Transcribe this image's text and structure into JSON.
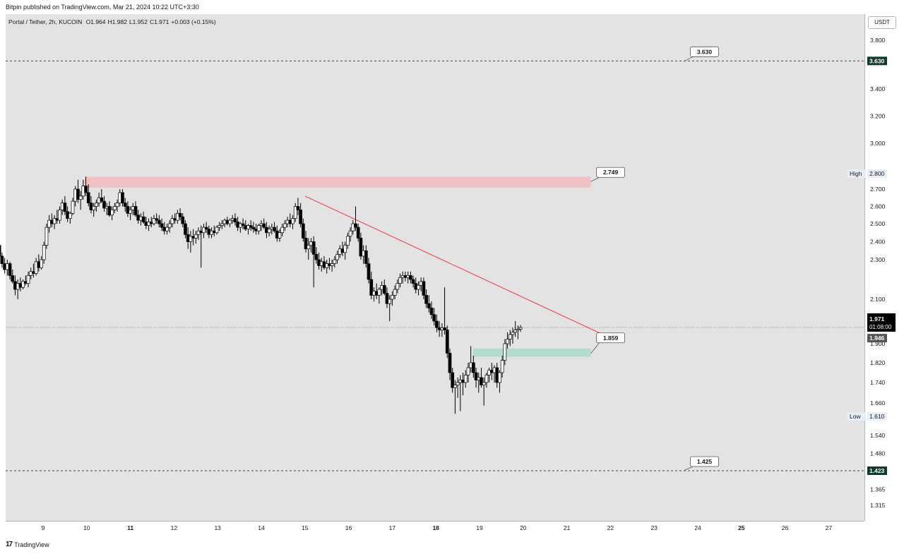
{
  "header": {
    "text": "Bitpin published on TradingView.com, Mar 21, 2024 10:22 UTC+3:30"
  },
  "legend": {
    "pair": "Portal / Tether, 2h, KUCOIN",
    "open": "O1.964",
    "high": "H1.982",
    "low": "L1.952",
    "close": "C1.971",
    "change": "+0.003 (+0.15%)"
  },
  "footer": {
    "brand": "TradingView",
    "logo": "17"
  },
  "currency": "USDT",
  "colors": {
    "up": "#ffffff",
    "down": "#000000",
    "trendline": "#f23645",
    "resistance_zone": "#f4b6b6",
    "support_zone": "#a6d8cb",
    "pane_bg": "#e3e3e3"
  },
  "chart_data": {
    "type": "candlestick",
    "y_ticks": [
      "3.800",
      "3.630",
      "3.400",
      "3.200",
      "3.000",
      "2.800",
      "2.700",
      "2.600",
      "2.500",
      "2.400",
      "2.300",
      "2.100",
      "1.971",
      "1.946",
      "1.900",
      "1.820",
      "1.740",
      "1.660",
      "1.610",
      "1.540",
      "1.480",
      "1.423",
      "1.365",
      "1.315"
    ],
    "x_ticks": [
      "9",
      "10",
      "11",
      "12",
      "13",
      "14",
      "15",
      "16",
      "17",
      "18",
      "19",
      "20",
      "21",
      "22",
      "23",
      "24",
      "25",
      "26",
      "27"
    ],
    "x_ticks_bold": [
      "11",
      "18",
      "25"
    ],
    "price_labels": [
      {
        "label": "",
        "value": "3.630",
        "kind": "hline"
      },
      {
        "label": "High",
        "value": "2.800",
        "kind": "marker"
      },
      {
        "label": "",
        "value": "1.971",
        "sub": "01:08:00",
        "kind": "last"
      },
      {
        "label": "",
        "value": "1.946",
        "kind": "prev"
      },
      {
        "label": "Low",
        "value": "1.610",
        "kind": "marker"
      },
      {
        "label": "",
        "value": "1.423",
        "kind": "hline"
      }
    ],
    "callouts": [
      "3.630",
      "2.749",
      "1.859",
      "1.425"
    ],
    "zones": [
      {
        "name": "resistance",
        "from": 2.71,
        "to": 2.78
      },
      {
        "name": "support",
        "from": 1.845,
        "to": 1.88
      }
    ],
    "horizontal_lines": [
      3.63,
      1.423,
      1.971
    ],
    "trendline": {
      "from": {
        "day": 15.0,
        "price": 2.66
      },
      "to": {
        "day": 22.0,
        "price": 1.925
      }
    },
    "last_price": 1.971,
    "candles": [
      [
        8.0,
        2.38,
        2.42,
        2.3,
        2.32
      ],
      [
        8.06,
        2.32,
        2.34,
        2.26,
        2.28
      ],
      [
        8.12,
        2.28,
        2.31,
        2.23,
        2.25
      ],
      [
        8.18,
        2.25,
        2.3,
        2.22,
        2.28
      ],
      [
        8.24,
        2.28,
        2.29,
        2.2,
        2.22
      ],
      [
        8.3,
        2.22,
        2.25,
        2.18,
        2.19
      ],
      [
        8.36,
        2.19,
        2.22,
        2.12,
        2.15
      ],
      [
        8.42,
        2.15,
        2.2,
        2.1,
        2.18
      ],
      [
        8.48,
        2.18,
        2.21,
        2.14,
        2.16
      ],
      [
        8.54,
        2.16,
        2.2,
        2.15,
        2.19
      ],
      [
        8.6,
        2.19,
        2.22,
        2.17,
        2.18
      ],
      [
        8.66,
        2.18,
        2.24,
        2.16,
        2.22
      ],
      [
        8.72,
        2.22,
        2.26,
        2.2,
        2.24
      ],
      [
        8.78,
        2.24,
        2.28,
        2.21,
        2.23
      ],
      [
        8.84,
        2.23,
        2.31,
        2.22,
        2.29
      ],
      [
        8.9,
        2.29,
        2.33,
        2.24,
        2.26
      ],
      [
        8.96,
        2.26,
        2.32,
        2.25,
        2.3
      ],
      [
        9.02,
        2.3,
        2.4,
        2.28,
        2.38
      ],
      [
        9.08,
        2.38,
        2.5,
        2.36,
        2.48
      ],
      [
        9.14,
        2.48,
        2.55,
        2.45,
        2.52
      ],
      [
        9.2,
        2.52,
        2.56,
        2.48,
        2.5
      ],
      [
        9.26,
        2.5,
        2.55,
        2.47,
        2.53
      ],
      [
        9.32,
        2.53,
        2.58,
        2.5,
        2.52
      ],
      [
        9.38,
        2.52,
        2.6,
        2.5,
        2.58
      ],
      [
        9.44,
        2.58,
        2.64,
        2.55,
        2.62
      ],
      [
        9.5,
        2.62,
        2.66,
        2.55,
        2.57
      ],
      [
        9.56,
        2.57,
        2.6,
        2.51,
        2.53
      ],
      [
        9.62,
        2.53,
        2.57,
        2.5,
        2.56
      ],
      [
        9.68,
        2.56,
        2.65,
        2.55,
        2.63
      ],
      [
        9.74,
        2.63,
        2.72,
        2.6,
        2.7
      ],
      [
        9.8,
        2.7,
        2.76,
        2.62,
        2.64
      ],
      [
        9.86,
        2.64,
        2.69,
        2.58,
        2.66
      ],
      [
        9.92,
        2.66,
        2.76,
        2.64,
        2.72
      ],
      [
        9.98,
        2.72,
        2.78,
        2.66,
        2.68
      ],
      [
        10.04,
        2.68,
        2.73,
        2.6,
        2.62
      ],
      [
        10.1,
        2.62,
        2.66,
        2.56,
        2.58
      ],
      [
        10.16,
        2.58,
        2.62,
        2.54,
        2.6
      ],
      [
        10.22,
        2.6,
        2.64,
        2.57,
        2.62
      ],
      [
        10.28,
        2.62,
        2.68,
        2.6,
        2.65
      ],
      [
        10.34,
        2.65,
        2.7,
        2.62,
        2.63
      ],
      [
        10.4,
        2.63,
        2.66,
        2.57,
        2.59
      ],
      [
        10.46,
        2.59,
        2.62,
        2.55,
        2.6
      ],
      [
        10.52,
        2.6,
        2.63,
        2.54,
        2.55
      ],
      [
        10.58,
        2.55,
        2.6,
        2.52,
        2.58
      ],
      [
        10.64,
        2.58,
        2.62,
        2.56,
        2.6
      ],
      [
        10.7,
        2.6,
        2.64,
        2.57,
        2.62
      ],
      [
        10.76,
        2.62,
        2.7,
        2.6,
        2.68
      ],
      [
        10.82,
        2.68,
        2.7,
        2.6,
        2.62
      ],
      [
        10.88,
        2.62,
        2.65,
        2.57,
        2.6
      ],
      [
        10.94,
        2.6,
        2.63,
        2.54,
        2.56
      ],
      [
        11.0,
        2.56,
        2.6,
        2.52,
        2.58
      ],
      [
        11.06,
        2.58,
        2.62,
        2.55,
        2.6
      ],
      [
        11.12,
        2.6,
        2.63,
        2.54,
        2.55
      ],
      [
        11.18,
        2.55,
        2.58,
        2.5,
        2.52
      ],
      [
        11.24,
        2.52,
        2.56,
        2.49,
        2.54
      ],
      [
        11.3,
        2.54,
        2.57,
        2.5,
        2.51
      ],
      [
        11.36,
        2.51,
        2.54,
        2.47,
        2.49
      ],
      [
        11.42,
        2.49,
        2.53,
        2.46,
        2.51
      ],
      [
        11.48,
        2.51,
        2.54,
        2.48,
        2.5
      ],
      [
        11.54,
        2.5,
        2.55,
        2.49,
        2.53
      ],
      [
        11.6,
        2.53,
        2.56,
        2.5,
        2.52
      ],
      [
        11.66,
        2.52,
        2.55,
        2.48,
        2.5
      ],
      [
        11.72,
        2.5,
        2.53,
        2.46,
        2.48
      ],
      [
        11.78,
        2.48,
        2.51,
        2.44,
        2.46
      ],
      [
        11.84,
        2.46,
        2.5,
        2.44,
        2.48
      ],
      [
        11.9,
        2.48,
        2.52,
        2.45,
        2.5
      ],
      [
        11.96,
        2.5,
        2.55,
        2.48,
        2.53
      ],
      [
        12.02,
        2.53,
        2.56,
        2.5,
        2.52
      ],
      [
        12.08,
        2.52,
        2.58,
        2.5,
        2.56
      ],
      [
        12.14,
        2.56,
        2.59,
        2.52,
        2.54
      ],
      [
        12.2,
        2.54,
        2.56,
        2.48,
        2.5
      ],
      [
        12.26,
        2.5,
        2.52,
        2.42,
        2.44
      ],
      [
        12.32,
        2.44,
        2.48,
        2.36,
        2.4
      ],
      [
        12.38,
        2.4,
        2.46,
        2.34,
        2.43
      ],
      [
        12.44,
        2.43,
        2.47,
        2.38,
        2.42
      ],
      [
        12.5,
        2.42,
        2.46,
        2.39,
        2.44
      ],
      [
        12.56,
        2.44,
        2.48,
        2.41,
        2.46
      ],
      [
        12.62,
        2.46,
        2.49,
        2.26,
        2.45
      ],
      [
        12.68,
        2.45,
        2.5,
        2.42,
        2.48
      ],
      [
        12.74,
        2.48,
        2.51,
        2.45,
        2.47
      ],
      [
        12.8,
        2.47,
        2.49,
        2.42,
        2.44
      ],
      [
        12.86,
        2.44,
        2.48,
        2.42,
        2.46
      ],
      [
        12.92,
        2.46,
        2.49,
        2.43,
        2.45
      ],
      [
        12.98,
        2.45,
        2.49,
        2.44,
        2.48
      ],
      [
        13.04,
        2.48,
        2.51,
        2.46,
        2.49
      ],
      [
        13.1,
        2.49,
        2.52,
        2.47,
        2.5
      ],
      [
        13.16,
        2.5,
        2.53,
        2.48,
        2.52
      ],
      [
        13.22,
        2.52,
        2.54,
        2.49,
        2.5
      ],
      [
        13.28,
        2.5,
        2.53,
        2.48,
        2.52
      ],
      [
        13.34,
        2.52,
        2.55,
        2.5,
        2.53
      ],
      [
        13.4,
        2.53,
        2.56,
        2.49,
        2.51
      ],
      [
        13.46,
        2.51,
        2.54,
        2.46,
        2.48
      ],
      [
        13.52,
        2.48,
        2.51,
        2.45,
        2.5
      ],
      [
        13.58,
        2.5,
        2.53,
        2.47,
        2.49
      ],
      [
        13.64,
        2.49,
        2.52,
        2.46,
        2.47
      ],
      [
        13.7,
        2.47,
        2.5,
        2.44,
        2.49
      ],
      [
        13.76,
        2.49,
        2.52,
        2.46,
        2.48
      ],
      [
        13.82,
        2.48,
        2.51,
        2.45,
        2.47
      ],
      [
        13.88,
        2.47,
        2.5,
        2.44,
        2.46
      ],
      [
        13.94,
        2.46,
        2.5,
        2.44,
        2.49
      ],
      [
        14.0,
        2.49,
        2.52,
        2.46,
        2.5
      ],
      [
        14.06,
        2.5,
        2.53,
        2.47,
        2.48
      ],
      [
        14.12,
        2.48,
        2.51,
        2.42,
        2.45
      ],
      [
        14.18,
        2.45,
        2.49,
        2.43,
        2.47
      ],
      [
        14.24,
        2.47,
        2.5,
        2.44,
        2.48
      ],
      [
        14.3,
        2.48,
        2.51,
        2.45,
        2.46
      ],
      [
        14.36,
        2.46,
        2.49,
        2.4,
        2.42
      ],
      [
        14.42,
        2.42,
        2.47,
        2.4,
        2.45
      ],
      [
        14.48,
        2.45,
        2.5,
        2.43,
        2.48
      ],
      [
        14.54,
        2.48,
        2.52,
        2.46,
        2.5
      ],
      [
        14.6,
        2.5,
        2.54,
        2.48,
        2.52
      ],
      [
        14.66,
        2.52,
        2.56,
        2.48,
        2.5
      ],
      [
        14.72,
        2.5,
        2.55,
        2.47,
        2.53
      ],
      [
        14.78,
        2.53,
        2.62,
        2.51,
        2.6
      ],
      [
        14.84,
        2.6,
        2.65,
        2.55,
        2.58
      ],
      [
        14.9,
        2.58,
        2.62,
        2.48,
        2.5
      ],
      [
        14.96,
        2.5,
        2.53,
        2.4,
        2.42
      ],
      [
        15.02,
        2.42,
        2.46,
        2.34,
        2.36
      ],
      [
        15.08,
        2.36,
        2.42,
        2.3,
        2.38
      ],
      [
        15.14,
        2.38,
        2.42,
        2.34,
        2.4
      ],
      [
        15.2,
        2.4,
        2.43,
        2.16,
        2.33
      ],
      [
        15.26,
        2.33,
        2.37,
        2.28,
        2.3
      ],
      [
        15.32,
        2.3,
        2.34,
        2.25,
        2.27
      ],
      [
        15.38,
        2.27,
        2.31,
        2.24,
        2.29
      ],
      [
        15.44,
        2.29,
        2.32,
        2.25,
        2.26
      ],
      [
        15.5,
        2.26,
        2.3,
        2.23,
        2.28
      ],
      [
        15.56,
        2.28,
        2.31,
        2.25,
        2.27
      ],
      [
        15.62,
        2.27,
        2.3,
        2.24,
        2.28
      ],
      [
        15.68,
        2.28,
        2.32,
        2.26,
        2.3
      ],
      [
        15.74,
        2.3,
        2.35,
        2.28,
        2.33
      ],
      [
        15.8,
        2.33,
        2.38,
        2.31,
        2.36
      ],
      [
        15.86,
        2.36,
        2.4,
        2.32,
        2.34
      ],
      [
        15.92,
        2.34,
        2.4,
        2.3,
        2.38
      ],
      [
        15.98,
        2.38,
        2.45,
        2.36,
        2.43
      ],
      [
        16.04,
        2.43,
        2.48,
        2.4,
        2.46
      ],
      [
        16.1,
        2.46,
        2.52,
        2.44,
        2.5
      ],
      [
        16.16,
        2.5,
        2.6,
        2.46,
        2.48
      ],
      [
        16.22,
        2.48,
        2.5,
        2.4,
        2.42
      ],
      [
        16.28,
        2.42,
        2.45,
        2.3,
        2.32
      ],
      [
        16.34,
        2.32,
        2.38,
        2.28,
        2.35
      ],
      [
        16.4,
        2.35,
        2.38,
        2.26,
        2.28
      ],
      [
        16.46,
        2.28,
        2.31,
        2.18,
        2.2
      ],
      [
        16.52,
        2.2,
        2.24,
        2.1,
        2.12
      ],
      [
        16.58,
        2.12,
        2.16,
        2.09,
        2.14
      ],
      [
        16.64,
        2.14,
        2.18,
        2.1,
        2.12
      ],
      [
        16.7,
        2.12,
        2.16,
        2.08,
        2.15
      ],
      [
        16.76,
        2.15,
        2.19,
        2.12,
        2.17
      ],
      [
        16.82,
        2.17,
        2.2,
        2.12,
        2.13
      ],
      [
        16.88,
        2.13,
        2.16,
        2.06,
        2.08
      ],
      [
        16.94,
        2.08,
        2.12,
        2.0,
        2.1
      ],
      [
        17.0,
        2.1,
        2.14,
        2.07,
        2.12
      ],
      [
        17.06,
        2.12,
        2.17,
        2.1,
        2.15
      ],
      [
        17.12,
        2.15,
        2.2,
        2.13,
        2.18
      ],
      [
        17.18,
        2.18,
        2.23,
        2.16,
        2.21
      ],
      [
        17.24,
        2.21,
        2.24,
        2.18,
        2.22
      ],
      [
        17.3,
        2.22,
        2.24,
        2.19,
        2.21
      ],
      [
        17.36,
        2.21,
        2.24,
        2.18,
        2.22
      ],
      [
        17.42,
        2.22,
        2.24,
        2.18,
        2.2
      ],
      [
        17.48,
        2.2,
        2.22,
        2.16,
        2.18
      ],
      [
        17.54,
        2.18,
        2.21,
        2.13,
        2.15
      ],
      [
        17.6,
        2.15,
        2.19,
        2.12,
        2.17
      ],
      [
        17.66,
        2.17,
        2.21,
        2.14,
        2.19
      ],
      [
        17.72,
        2.19,
        2.21,
        2.1,
        2.12
      ],
      [
        17.78,
        2.12,
        2.15,
        2.06,
        2.08
      ],
      [
        17.84,
        2.08,
        2.12,
        2.04,
        2.06
      ],
      [
        17.9,
        2.06,
        2.09,
        2.01,
        2.03
      ],
      [
        17.96,
        2.03,
        2.06,
        1.98,
        2.0
      ],
      [
        18.02,
        2.0,
        2.03,
        1.95,
        1.97
      ],
      [
        18.08,
        1.97,
        2.0,
        1.93,
        1.96
      ],
      [
        18.14,
        1.96,
        1.99,
        1.93,
        1.97
      ],
      [
        18.2,
        1.97,
        2.16,
        1.94,
        1.96
      ],
      [
        18.26,
        1.96,
        1.98,
        1.84,
        1.86
      ],
      [
        18.32,
        1.86,
        1.88,
        1.75,
        1.78
      ],
      [
        18.38,
        1.78,
        1.8,
        1.7,
        1.72
      ],
      [
        18.44,
        1.72,
        1.75,
        1.62,
        1.73
      ],
      [
        18.5,
        1.73,
        1.76,
        1.68,
        1.74
      ],
      [
        18.56,
        1.74,
        1.77,
        1.63,
        1.75
      ],
      [
        18.62,
        1.75,
        1.78,
        1.69,
        1.74
      ],
      [
        18.68,
        1.74,
        1.79,
        1.72,
        1.77
      ],
      [
        18.74,
        1.77,
        1.82,
        1.74,
        1.8
      ],
      [
        18.8,
        1.8,
        1.89,
        1.78,
        1.82
      ],
      [
        18.86,
        1.82,
        1.85,
        1.76,
        1.78
      ],
      [
        18.92,
        1.78,
        1.8,
        1.72,
        1.75
      ],
      [
        18.98,
        1.75,
        1.78,
        1.7,
        1.76
      ],
      [
        19.04,
        1.76,
        1.8,
        1.72,
        1.73
      ],
      [
        19.1,
        1.73,
        1.76,
        1.65,
        1.74
      ],
      [
        19.16,
        1.74,
        1.78,
        1.72,
        1.77
      ],
      [
        19.22,
        1.77,
        1.8,
        1.74,
        1.79
      ],
      [
        19.28,
        1.79,
        1.82,
        1.75,
        1.78
      ],
      [
        19.34,
        1.78,
        1.81,
        1.74,
        1.8
      ],
      [
        19.4,
        1.8,
        1.82,
        1.72,
        1.74
      ],
      [
        19.46,
        1.74,
        1.79,
        1.7,
        1.78
      ],
      [
        19.52,
        1.78,
        1.85,
        1.76,
        1.83
      ],
      [
        19.58,
        1.83,
        1.92,
        1.81,
        1.9
      ],
      [
        19.64,
        1.9,
        1.95,
        1.88,
        1.92
      ],
      [
        19.7,
        1.92,
        1.96,
        1.89,
        1.94
      ],
      [
        19.76,
        1.94,
        1.97,
        1.9,
        1.95
      ],
      [
        19.82,
        1.95,
        2.0,
        1.93,
        1.96
      ],
      [
        19.88,
        1.96,
        1.98,
        1.92,
        1.964
      ],
      [
        19.94,
        1.964,
        1.982,
        1.952,
        1.971
      ]
    ]
  }
}
